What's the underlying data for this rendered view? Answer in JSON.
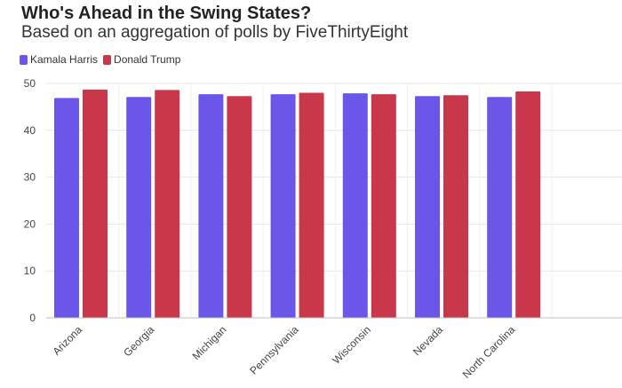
{
  "title": "Who's Ahead in the Swing States?",
  "subtitle": "Based on an aggregation of polls by FiveThirtyEight",
  "chart_data": {
    "type": "bar",
    "title": "Who's Ahead in the Swing States?",
    "subtitle": "Based on an aggregation of polls by FiveThirtyEight",
    "categories": [
      "Arizona",
      "Georgia",
      "Michigan",
      "Pennsylvania",
      "Wisconsin",
      "Nevada",
      "North Carolina"
    ],
    "series": [
      {
        "name": "Kamala Harris",
        "color": "#6a56e8",
        "values": [
          46.9,
          47.1,
          47.7,
          47.7,
          47.9,
          47.3,
          47.1
        ]
      },
      {
        "name": "Donald Trump",
        "color": "#c8374a",
        "values": [
          48.7,
          48.6,
          47.3,
          48.0,
          47.7,
          47.5,
          48.3
        ]
      }
    ],
    "ylim": [
      0,
      50
    ],
    "yticks": [
      0,
      10,
      20,
      30,
      40,
      50
    ],
    "xlabel": "",
    "ylabel": "",
    "grid": true,
    "legend": "top-left"
  }
}
